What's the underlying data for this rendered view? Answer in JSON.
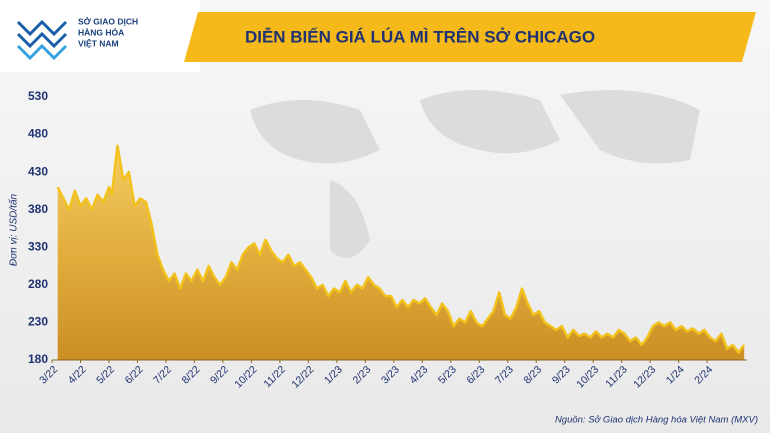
{
  "chart_data": {
    "type": "area",
    "title": "DIỄN BIẾN GIÁ LÚA MÌ TRÊN SỞ CHICAGO",
    "brand_lines": [
      "SỞ GIAO DỊCH",
      "HÀNG HÓA",
      "VIỆT NAM"
    ],
    "ylabel": "Đơn vị: USD/tấn",
    "source": "Nguồn: Sở Giao dịch Hàng hóa Việt Nam (MXV)",
    "xlim": [
      0,
      24.4
    ],
    "xticks": [
      {
        "value": 0,
        "label": "3/22"
      },
      {
        "value": 1,
        "label": "4/22"
      },
      {
        "value": 2,
        "label": "5/22"
      },
      {
        "value": 3,
        "label": "6/22"
      },
      {
        "value": 4,
        "label": "7/22"
      },
      {
        "value": 5,
        "label": "8/22"
      },
      {
        "value": 6,
        "label": "9/22"
      },
      {
        "value": 7,
        "label": "10/22"
      },
      {
        "value": 8,
        "label": "11/22"
      },
      {
        "value": 9,
        "label": "12/22"
      },
      {
        "value": 10,
        "label": "1/23"
      },
      {
        "value": 11,
        "label": "2/23"
      },
      {
        "value": 12,
        "label": "3/23"
      },
      {
        "value": 13,
        "label": "4/23"
      },
      {
        "value": 14,
        "label": "5/23"
      },
      {
        "value": 15,
        "label": "6/23"
      },
      {
        "value": 16,
        "label": "7/23"
      },
      {
        "value": 17,
        "label": "8/23"
      },
      {
        "value": 18,
        "label": "9/23"
      },
      {
        "value": 19,
        "label": "10/23"
      },
      {
        "value": 20,
        "label": "11/23"
      },
      {
        "value": 21,
        "label": "12/23"
      },
      {
        "value": 22,
        "label": "1/24"
      },
      {
        "value": 23,
        "label": "2/24"
      }
    ],
    "ylim": [
      180,
      530
    ],
    "yticks": [
      180,
      230,
      280,
      330,
      380,
      430,
      480,
      530
    ],
    "grid": false,
    "color": "#f2c21b",
    "x": [
      0.2,
      0.4,
      0.6,
      0.8,
      1.0,
      1.2,
      1.4,
      1.6,
      1.8,
      2.0,
      2.1,
      2.3,
      2.5,
      2.7,
      2.9,
      3.1,
      3.3,
      3.5,
      3.7,
      3.9,
      4.1,
      4.3,
      4.5,
      4.7,
      4.9,
      5.1,
      5.3,
      5.5,
      5.7,
      5.9,
      6.1,
      6.3,
      6.5,
      6.7,
      6.9,
      7.1,
      7.3,
      7.5,
      7.7,
      7.9,
      8.1,
      8.3,
      8.5,
      8.7,
      8.9,
      9.1,
      9.3,
      9.5,
      9.7,
      9.9,
      10.1,
      10.3,
      10.5,
      10.7,
      10.9,
      11.1,
      11.3,
      11.5,
      11.7,
      11.9,
      12.1,
      12.3,
      12.5,
      12.7,
      12.9,
      13.1,
      13.3,
      13.5,
      13.7,
      13.9,
      14.1,
      14.3,
      14.5,
      14.7,
      14.9,
      15.1,
      15.3,
      15.5,
      15.7,
      15.9,
      16.1,
      16.3,
      16.5,
      16.7,
      16.9,
      17.1,
      17.3,
      17.5,
      17.7,
      17.9,
      18.1,
      18.3,
      18.5,
      18.7,
      18.9,
      19.1,
      19.3,
      19.5,
      19.7,
      19.9,
      20.1,
      20.3,
      20.5,
      20.7,
      20.9,
      21.1,
      21.3,
      21.5,
      21.7,
      21.9,
      22.1,
      22.3,
      22.5,
      22.7,
      22.9,
      23.1,
      23.3,
      23.5,
      23.7,
      23.9,
      24.1,
      24.3
    ],
    "values": [
      410,
      395,
      380,
      405,
      385,
      395,
      380,
      400,
      390,
      410,
      400,
      465,
      420,
      430,
      385,
      395,
      390,
      360,
      320,
      300,
      285,
      295,
      275,
      295,
      285,
      300,
      285,
      305,
      290,
      280,
      290,
      310,
      300,
      320,
      330,
      335,
      320,
      340,
      325,
      315,
      310,
      320,
      305,
      310,
      300,
      290,
      275,
      280,
      265,
      275,
      270,
      285,
      270,
      280,
      275,
      290,
      280,
      275,
      265,
      265,
      250,
      260,
      250,
      260,
      255,
      262,
      250,
      240,
      255,
      245,
      225,
      235,
      230,
      245,
      230,
      225,
      235,
      245,
      270,
      240,
      235,
      250,
      275,
      255,
      240,
      245,
      230,
      225,
      220,
      225,
      210,
      220,
      212,
      215,
      210,
      218,
      210,
      215,
      210,
      220,
      215,
      205,
      210,
      200,
      210,
      225,
      230,
      225,
      230,
      220,
      225,
      218,
      222,
      215,
      220,
      210,
      205,
      215,
      195,
      200,
      190,
      200
    ]
  }
}
